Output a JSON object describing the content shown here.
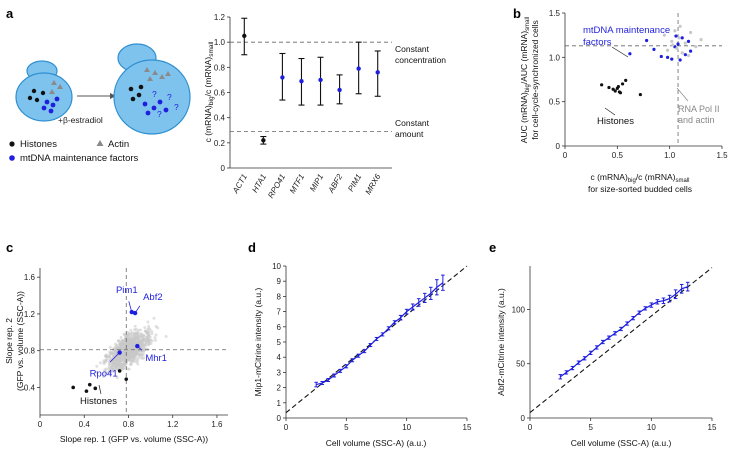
{
  "panel_labels": [
    "a",
    "b",
    "c",
    "d",
    "e"
  ],
  "colors": {
    "blue": "#1f1fe0",
    "black": "#111111",
    "grey": "#9a9a9a",
    "light_grey": "#c8c8c8",
    "cell_fill": "#7ec3ee",
    "cell_stroke": "#2f8fd0",
    "dashed": "#666666"
  },
  "schematic": {
    "treatment": "+β-estradiol",
    "question_mark": "?",
    "legend": {
      "histones": "Histones",
      "actin": "Actin",
      "mtdna": "mtDNA maintenance factors"
    }
  },
  "chart_data": [
    {
      "id": "a",
      "type": "errorbar",
      "categories": [
        "ACT1",
        "HTA1",
        "RPO41",
        "MTF1",
        "MIP1",
        "ABF2",
        "PIM1",
        "MRX6"
      ],
      "groups": [
        "black",
        "black",
        "blue",
        "blue",
        "blue",
        "blue",
        "blue",
        "blue"
      ],
      "values": [
        1.05,
        0.22,
        0.72,
        0.69,
        0.7,
        0.62,
        0.79,
        0.76
      ],
      "err_low": [
        0.9,
        0.19,
        0.54,
        0.5,
        0.5,
        0.51,
        0.59,
        0.57
      ],
      "err_high": [
        1.19,
        0.25,
        0.91,
        0.87,
        0.88,
        0.74,
        1.0,
        0.93
      ],
      "ylim": [
        0.0,
        1.2
      ],
      "yticks": [
        "0",
        "0.2",
        "0.4",
        "0.6",
        "0.8",
        "1.0",
        "1.2"
      ],
      "ylabel_parts": [
        "c (mRNA)",
        "big",
        "/c (mRNA)",
        "small"
      ],
      "reference_lines": [
        {
          "y": 1.0,
          "label": [
            "Constant",
            "concentration"
          ]
        },
        {
          "y": 0.29,
          "label": [
            "Constant",
            "amount"
          ]
        }
      ]
    },
    {
      "id": "b",
      "type": "scatter",
      "xlim": [
        0,
        1.5
      ],
      "ylim": [
        0,
        1.5
      ],
      "xticks": [
        "0",
        "0.5",
        "1.0",
        "1.5"
      ],
      "yticks": [
        "0",
        "0.5",
        "1.0",
        "1.5"
      ],
      "xlabel_line1": [
        "c (mRNA)",
        "big",
        "/c (mRNA)",
        "small"
      ],
      "xlabel_line2": "for size-sorted budded cells",
      "ylabel_line1": [
        "AUC (mRNA)",
        "big",
        "/AUC (mRNA)",
        "small"
      ],
      "ylabel_line2": "for cell-cycle-synchronized cells",
      "ref_x": 1.08,
      "ref_y": 1.13,
      "series": [
        {
          "name": "Histones",
          "group": "black",
          "x": [
            0.35,
            0.42,
            0.46,
            0.48,
            0.5,
            0.52,
            0.55,
            0.58,
            0.72,
            0.53,
            0.51
          ],
          "y": [
            0.69,
            0.66,
            0.64,
            0.62,
            0.65,
            0.61,
            0.7,
            0.74,
            0.58,
            0.6,
            0.67
          ]
        },
        {
          "name": "mtDNA maintenance factors",
          "group": "blue",
          "x": [
            0.62,
            0.85,
            0.92,
            0.98,
            1.02,
            1.05,
            1.08,
            1.12,
            1.15,
            1.18,
            1.2,
            1.1,
            0.78,
            1.06
          ],
          "y": [
            1.04,
            1.09,
            1.01,
            1.0,
            0.98,
            1.12,
            1.15,
            1.22,
            1.03,
            1.18,
            1.07,
            0.97,
            1.19,
            1.24
          ]
        },
        {
          "name": "RNA Pol II and actin",
          "group": "grey",
          "x": [
            0.95,
            1.02,
            1.05,
            1.07,
            1.09,
            1.12,
            1.15,
            1.2,
            1.25,
            1.3,
            0.98,
            1.1,
            1.18,
            1.03
          ],
          "y": [
            1.25,
            1.18,
            1.3,
            1.1,
            1.22,
            1.05,
            1.16,
            1.28,
            1.12,
            1.2,
            1.08,
            1.35,
            1.02,
            1.14
          ]
        }
      ],
      "annotations": {
        "mtdna": [
          "mtDNA maintenance",
          "factors"
        ],
        "histones": "Histones",
        "rna_pol": [
          "RNA Pol II",
          "and actin"
        ]
      }
    },
    {
      "id": "c",
      "type": "scatter",
      "xlim": [
        0,
        1.7
      ],
      "ylim": [
        0.1,
        1.7
      ],
      "xticks": [
        "0",
        "0.4",
        "0.8",
        "1.2",
        "1.6"
      ],
      "yticks": [
        "0.4",
        "0.8",
        "1.2",
        "1.6"
      ],
      "xlabel": "Slope rep. 1 (GFP vs. volume (SSC-A))",
      "ylabel_line1": "Slope rep. 2",
      "ylabel_line2": "(GFP vs. volume (SSC-A))",
      "ref_x": 0.78,
      "ref_y": 0.81,
      "background_points": 900,
      "histones": {
        "x": [
          0.3,
          0.42,
          0.45,
          0.5,
          0.72,
          0.78
        ],
        "y": [
          0.4,
          0.36,
          0.43,
          0.39,
          0.58,
          0.49
        ]
      },
      "highlighted": [
        {
          "name": "Pim1",
          "x": 0.83,
          "y": 1.22
        },
        {
          "name": "Abf2",
          "x": 0.86,
          "y": 1.21
        },
        {
          "name": "Rpo41",
          "x": 0.72,
          "y": 0.78
        },
        {
          "name": "Mhr1",
          "x": 0.88,
          "y": 0.85
        }
      ],
      "histones_label": "Histones"
    },
    {
      "id": "d",
      "type": "line",
      "xlabel": "Cell volume (SSC-A) (a.u.)",
      "ylabel": "Mip1-mCitrine intensity (a.u.)",
      "xlim": [
        0,
        15
      ],
      "ylim": [
        0,
        10
      ],
      "xticks": [
        "0",
        "5",
        "10",
        "15"
      ],
      "yticks": [
        "0",
        "1",
        "2",
        "3",
        "4",
        "5",
        "6",
        "7",
        "8",
        "9",
        "10"
      ],
      "fit": {
        "slope": 0.745,
        "intercept": 0.35
      },
      "x": [
        2.5,
        3.0,
        3.5,
        4.0,
        4.5,
        5.0,
        5.5,
        6.0,
        6.5,
        7.0,
        7.5,
        8.0,
        8.5,
        9.0,
        9.5,
        10.0,
        10.5,
        11.0,
        11.5,
        12.0,
        12.5,
        13.0
      ],
      "y": [
        2.2,
        2.3,
        2.5,
        2.8,
        3.1,
        3.4,
        3.8,
        4.1,
        4.4,
        4.8,
        5.2,
        5.5,
        5.9,
        6.3,
        6.6,
        7.0,
        7.3,
        7.6,
        7.9,
        8.2,
        8.6,
        8.9
      ],
      "err": [
        0.15,
        0.1,
        0.1,
        0.1,
        0.1,
        0.1,
        0.1,
        0.1,
        0.1,
        0.1,
        0.1,
        0.1,
        0.1,
        0.1,
        0.15,
        0.15,
        0.2,
        0.25,
        0.3,
        0.4,
        0.5,
        0.5
      ]
    },
    {
      "id": "e",
      "type": "line",
      "xlabel": "Cell volume (SSC-A) (a.u.)",
      "ylabel": "Abf2-mCitrine intensity (a.u.)",
      "xlim": [
        0,
        15
      ],
      "ylim": [
        0,
        140
      ],
      "xticks": [
        "0",
        "5",
        "10",
        "15"
      ],
      "yticks": [
        "0",
        "50",
        "100"
      ],
      "fit": {
        "slope": 8.9,
        "intercept": 5
      },
      "x": [
        2.5,
        3.0,
        3.5,
        4.0,
        4.5,
        5.0,
        5.5,
        6.0,
        6.5,
        7.0,
        7.5,
        8.0,
        8.5,
        9.0,
        9.5,
        10.0,
        10.5,
        11.0,
        11.5,
        12.0,
        12.5,
        13.0
      ],
      "y": [
        38,
        42,
        46,
        51,
        55,
        60,
        65,
        70,
        74,
        78,
        82,
        87,
        92,
        97,
        101,
        104,
        107,
        108,
        110,
        114,
        119,
        121
      ],
      "err": [
        2,
        1.5,
        1.5,
        1.5,
        1.5,
        1.5,
        1.5,
        1.5,
        1.5,
        1.5,
        1.5,
        1.5,
        1.5,
        1.5,
        1.5,
        2,
        2,
        2.5,
        3,
        4,
        4,
        4
      ]
    }
  ]
}
